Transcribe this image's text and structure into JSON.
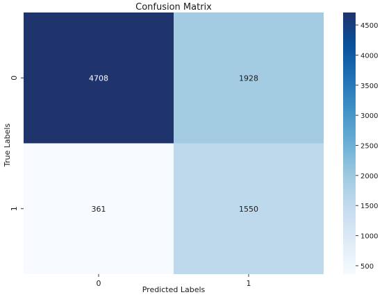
{
  "chart_data": {
    "type": "heatmap",
    "title": "Confusion Matrix",
    "xlabel": "Predicted Labels",
    "ylabel": "True Labels",
    "x_categories": [
      "0",
      "1"
    ],
    "y_categories": [
      "0",
      "1"
    ],
    "values": [
      [
        4708,
        1928
      ],
      [
        361,
        1550
      ]
    ],
    "colormap": "Blues",
    "colorbar": {
      "min": 361,
      "max": 4708,
      "ticks": [
        500,
        1000,
        1500,
        2000,
        2500,
        3000,
        3500,
        4000,
        4500
      ]
    },
    "colors": {
      "max": "#1f336d",
      "min": "#f7fbff",
      "annotation_dark": "#ffffff",
      "annotation_light": "#1a1a1a"
    }
  }
}
